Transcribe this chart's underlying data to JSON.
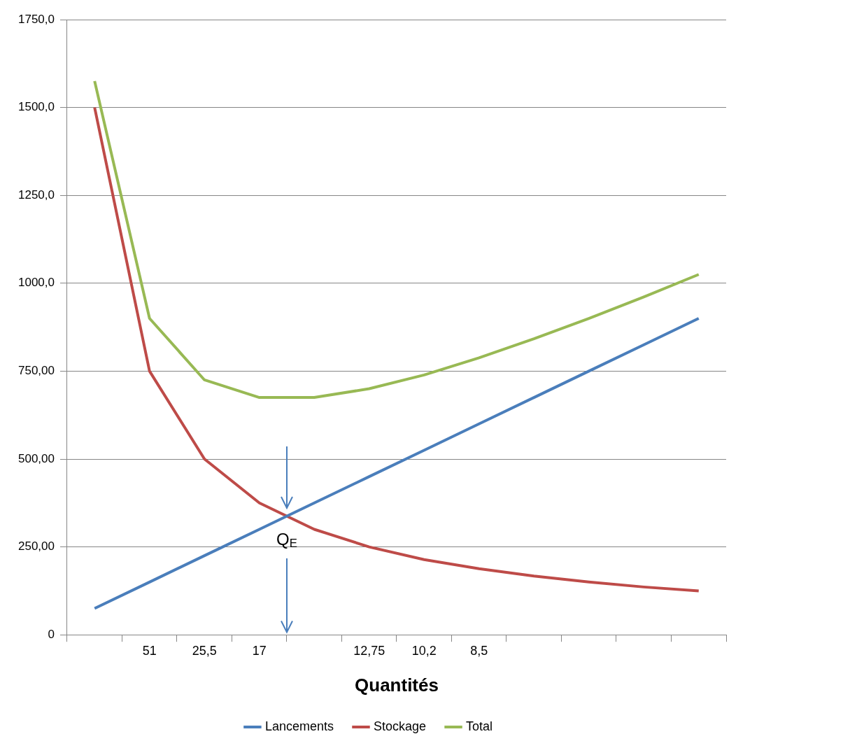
{
  "chart_data": {
    "type": "line",
    "xlabel": "Quantités",
    "categories": [
      null,
      "51",
      "25,5",
      "17",
      null,
      "12,75",
      "10,2",
      "8,5",
      null,
      null,
      null,
      null
    ],
    "series": [
      {
        "name": "Lancements",
        "color": "#4a7ebb",
        "values": [
          75,
          150,
          225,
          300,
          375,
          450,
          525,
          600,
          675,
          750,
          825,
          900
        ]
      },
      {
        "name": "Stockage",
        "color": "#be4b48",
        "values": [
          1500,
          750,
          500,
          375,
          300,
          250,
          214,
          188,
          167,
          150,
          136,
          125
        ]
      },
      {
        "name": "Total",
        "color": "#98b954",
        "values": [
          1575,
          900,
          725,
          675,
          675,
          700,
          739,
          788,
          842,
          900,
          961,
          1025
        ]
      }
    ],
    "ylim": [
      0,
      1750
    ],
    "yticks": [
      {
        "value": 0,
        "label": "0"
      },
      {
        "value": 250,
        "label": "250,00"
      },
      {
        "value": 500,
        "label": "500,00"
      },
      {
        "value": 750,
        "label": "750,00"
      },
      {
        "value": 1000,
        "label": "1000,0"
      },
      {
        "value": 1250,
        "label": "1250,0"
      },
      {
        "value": 1500,
        "label": "1500,0"
      },
      {
        "value": 1750,
        "label": "1750,0"
      }
    ],
    "grid": "y",
    "legend": "bottom",
    "marker": "none",
    "line_style": "solid",
    "annotations": [
      "Q$_{E}$"
    ]
  }
}
